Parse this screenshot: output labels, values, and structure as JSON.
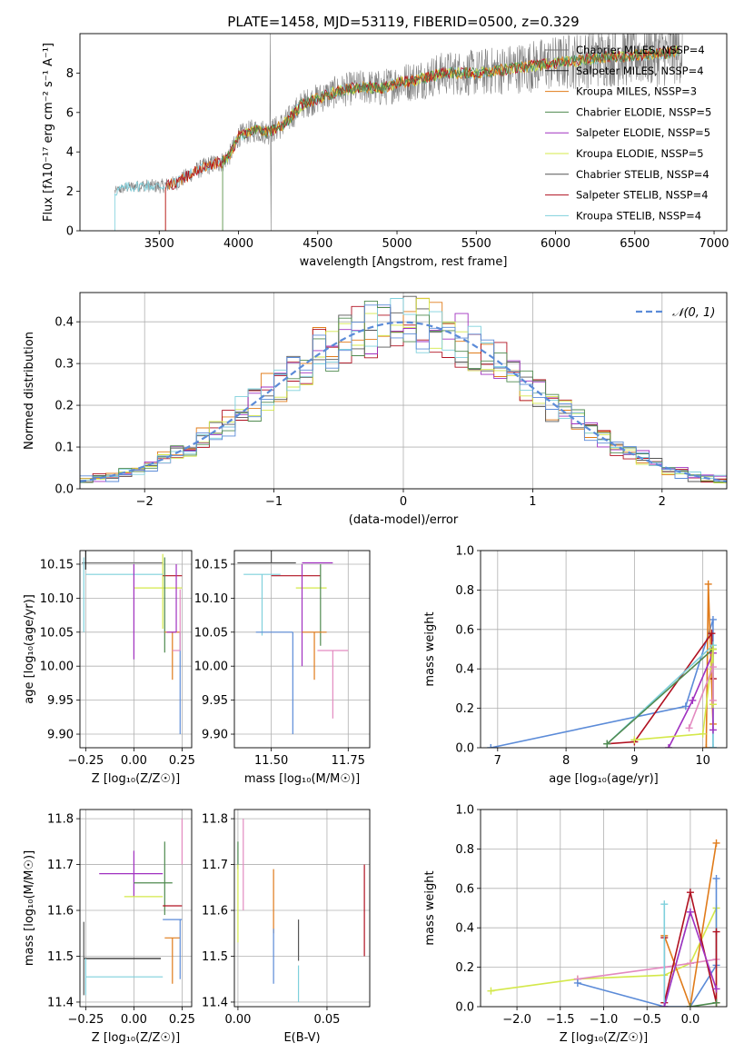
{
  "title": "PLATE=1458, MJD=53119, FIBERID=0500, z=0.329",
  "colors": {
    "c_miles": "#777777",
    "s_miles": "#222222",
    "k_miles": "#e07b1a",
    "c_elodie": "#4f8a4f",
    "s_elodie": "#a030c0",
    "k_elodie": "#d4e84a",
    "c_stelib": "#555555",
    "s_stelib": "#b01020",
    "k_stelib": "#7fd0dc",
    "gauss": "#5b8bd8",
    "extra1": "#5b8bd8",
    "extra2": "#e38ac0"
  },
  "chart_data": [
    {
      "id": "spectrum",
      "type": "line",
      "xlabel": "wavelength [Angstrom, rest frame]",
      "ylabel": "Flux [fλ10⁻¹⁷ erg cm⁻² s⁻¹ A⁻¹]",
      "xlim": [
        3000,
        7080
      ],
      "ylim": [
        0,
        10
      ],
      "xticks": [
        3500,
        4000,
        4500,
        5000,
        5500,
        6000,
        6500,
        7000
      ],
      "yticks": [
        0,
        2,
        4,
        6,
        8
      ],
      "legend": [
        "Chabrier MILES, NSSP=4",
        "Salpeter MILES, NSSP=4",
        "Kroupa MILES, NSSP=3",
        "Chabrier ELODIE, NSSP=5",
        "Salpeter ELODIE, NSSP=5",
        "Kroupa ELODIE, NSSP=5",
        "Chabrier STELIB, NSSP=4",
        "Salpeter STELIB, NSSP=4",
        "Kroupa STELIB, NSSP=4"
      ],
      "legend_placement": "top-right",
      "grid": false,
      "continuum": {
        "x": [
          3220,
          3300,
          3400,
          3500,
          3600,
          3700,
          3800,
          3900,
          3950,
          4000,
          4100,
          4200,
          4300,
          4400,
          4500,
          4600,
          4700,
          4800,
          4900,
          5000,
          5100,
          5200,
          5300,
          5500,
          5700,
          5900,
          6100,
          6300,
          6500,
          6700,
          6800
        ],
        "y": [
          2.0,
          2.2,
          2.3,
          2.25,
          2.4,
          2.9,
          3.3,
          3.5,
          3.9,
          4.8,
          5.1,
          5.0,
          5.5,
          6.4,
          6.7,
          7.0,
          7.2,
          7.3,
          7.2,
          7.5,
          7.6,
          7.8,
          8.0,
          8.0,
          8.2,
          8.4,
          8.6,
          8.8,
          8.9,
          9.0,
          9.2
        ]
      }
    },
    {
      "id": "residuals",
      "type": "step",
      "xlabel": "(data-model)/error",
      "ylabel": "Normed distribution",
      "xlim": [
        -2.5,
        2.5
      ],
      "ylim": [
        0,
        0.47
      ],
      "xticks": [
        -2,
        -1,
        0,
        1,
        2
      ],
      "yticks": [
        0.0,
        0.1,
        0.2,
        0.3,
        0.4
      ],
      "legend": [
        "𝒩(0, 1)"
      ],
      "legend_placement": "top-right",
      "grid": true,
      "bin_width": 0.1
    },
    {
      "id": "age_vs_Z",
      "type": "errorbar",
      "xlabel": "Z [log₁₀(Z/Z☉)]",
      "ylabel": "age  [log₁₀(age/yr)]",
      "xlim": [
        -0.28,
        0.3
      ],
      "ylim": [
        9.88,
        10.17
      ],
      "xticks": [
        -0.25,
        0.0,
        0.25
      ],
      "xtick_labels": [
        "−0.25",
        "0.00",
        "0.25"
      ],
      "yticks": [
        9.9,
        9.95,
        10.0,
        10.05,
        10.1,
        10.15
      ],
      "grid": true,
      "points": [
        {
          "x": -0.02,
          "y": 10.152,
          "xerr": [
            0.25,
            0.17
          ],
          "yerr": [
            0.0,
            0.0
          ],
          "color": "c_miles"
        },
        {
          "x": -0.25,
          "y": 10.152,
          "xerr": [
            0.0,
            0.0
          ],
          "yerr": [
            0.01,
            0.02
          ],
          "color": "s_miles"
        },
        {
          "x": 0.15,
          "y": 10.115,
          "xerr": [
            0.15,
            0.1
          ],
          "yerr": [
            0.06,
            0.05
          ],
          "color": "k_elodie"
        },
        {
          "x": -0.05,
          "y": 10.135,
          "xerr": [
            0.2,
            0.2
          ],
          "yerr": [
            0.0,
            0.0
          ],
          "color": "k_stelib"
        },
        {
          "x": -0.26,
          "y": 10.1,
          "xerr": [
            0.0,
            0.0
          ],
          "yerr": [
            0.05,
            0.06
          ],
          "color": "k_stelib"
        },
        {
          "x": 0.0,
          "y": 10.1,
          "xerr": [
            0.0,
            0.0
          ],
          "yerr": [
            0.09,
            0.05
          ],
          "color": "s_elodie"
        },
        {
          "x": 0.2,
          "y": 10.133,
          "xerr": [
            0.05,
            0.05
          ],
          "yerr": [
            0.0,
            0.0
          ],
          "color": "s_stelib"
        },
        {
          "x": 0.16,
          "y": 10.1,
          "xerr": [
            0.0,
            0.0
          ],
          "yerr": [
            0.08,
            0.06
          ],
          "color": "c_elodie"
        },
        {
          "x": 0.2,
          "y": 10.05,
          "xerr": [
            0.04,
            0.04
          ],
          "yerr": [
            0.07,
            0.0
          ],
          "color": "k_miles"
        },
        {
          "x": 0.22,
          "y": 10.05,
          "xerr": [
            0.05,
            0.0
          ],
          "yerr": [
            0.0,
            0.1
          ],
          "color": "s_elodie"
        },
        {
          "x": 0.24,
          "y": 10.05,
          "xerr": [
            0.0,
            0.0
          ],
          "yerr": [
            0.15,
            0.0
          ],
          "color": "gauss"
        },
        {
          "x": 0.24,
          "y": 10.023,
          "xerr": [
            0.04,
            0.0
          ],
          "yerr": [
            0.0,
            0.09
          ],
          "color": "extra2"
        }
      ]
    },
    {
      "id": "age_vs_mass",
      "type": "errorbar",
      "xlabel": "mass [log₁₀(M/M☉)]",
      "ylabel": "",
      "xlim": [
        11.38,
        11.82
      ],
      "ylim": [
        9.88,
        10.17
      ],
      "xticks": [
        11.5,
        11.75
      ],
      "xtick_labels": [
        "11.50",
        "11.75"
      ],
      "yticks": [
        9.9,
        9.95,
        10.0,
        10.05,
        10.1,
        10.15
      ],
      "grid": true,
      "points": [
        {
          "x": 11.5,
          "y": 10.152,
          "xerr": [
            0.11,
            0.08
          ],
          "yerr": [
            0.0,
            0.02
          ],
          "color": "c_stelib"
        },
        {
          "x": 11.65,
          "y": 10.152,
          "xerr": [
            0.05,
            0.05
          ],
          "yerr": [
            0.0,
            0.0
          ],
          "color": "s_elodie"
        },
        {
          "x": 11.47,
          "y": 10.135,
          "xerr": [
            0.06,
            0.06
          ],
          "yerr": [
            0.09,
            0.0
          ],
          "color": "k_stelib"
        },
        {
          "x": 11.6,
          "y": 10.133,
          "xerr": [
            0.1,
            0.06
          ],
          "yerr": [
            0.0,
            0.0
          ],
          "color": "s_stelib"
        },
        {
          "x": 11.63,
          "y": 10.115,
          "xerr": [
            0.05,
            0.05
          ],
          "yerr": [
            0.0,
            0.0
          ],
          "color": "k_elodie"
        },
        {
          "x": 11.6,
          "y": 10.1,
          "xerr": [
            0.0,
            0.0
          ],
          "yerr": [
            0.1,
            0.05
          ],
          "color": "s_elodie"
        },
        {
          "x": 11.66,
          "y": 10.1,
          "xerr": [
            0.0,
            0.0
          ],
          "yerr": [
            0.07,
            0.05
          ],
          "color": "c_elodie"
        },
        {
          "x": 11.64,
          "y": 10.05,
          "xerr": [
            0.04,
            0.04
          ],
          "yerr": [
            0.07,
            0.0
          ],
          "color": "k_miles"
        },
        {
          "x": 11.57,
          "y": 10.05,
          "xerr": [
            0.12,
            0.0
          ],
          "yerr": [
            0.15,
            0.0
          ],
          "color": "gauss"
        },
        {
          "x": 11.7,
          "y": 10.023,
          "xerr": [
            0.05,
            0.05
          ],
          "yerr": [
            0.1,
            0.0
          ],
          "color": "extra2"
        }
      ]
    },
    {
      "id": "weight_vs_age",
      "type": "line",
      "xlabel": "age  [log₁₀(age/yr)]",
      "ylabel": "mass weight",
      "xlim": [
        6.75,
        10.35
      ],
      "ylim": [
        0,
        1.0
      ],
      "xticks": [
        7,
        8,
        9,
        10
      ],
      "yticks": [
        0.0,
        0.2,
        0.4,
        0.6,
        0.8,
        1.0
      ],
      "grid": true,
      "series": [
        {
          "color": "gauss",
          "x": [
            6.9,
            9.75,
            10.15,
            10.15
          ],
          "y": [
            0.0,
            0.21,
            0.65,
            0.0
          ]
        },
        {
          "color": "k_miles",
          "x": [
            10.05,
            10.08,
            10.15
          ],
          "y": [
            0.0,
            0.83,
            0.12
          ]
        },
        {
          "color": "s_stelib",
          "x": [
            8.6,
            9.0,
            10.13,
            10.15
          ],
          "y": [
            0.02,
            0.03,
            0.58,
            0.35
          ]
        },
        {
          "color": "k_stelib",
          "x": [
            8.6,
            10.15,
            10.15
          ],
          "y": [
            0.02,
            0.52,
            0.0
          ]
        },
        {
          "color": "c_elodie",
          "x": [
            8.6,
            10.15
          ],
          "y": [
            0.02,
            0.5
          ]
        },
        {
          "color": "s_elodie",
          "x": [
            9.5,
            9.85,
            10.15,
            10.15
          ],
          "y": [
            0.0,
            0.24,
            0.48,
            0.09
          ]
        },
        {
          "color": "k_elodie",
          "x": [
            9.0,
            10.0,
            10.15,
            10.15
          ],
          "y": [
            0.04,
            0.07,
            0.5,
            0.22
          ]
        },
        {
          "color": "extra2",
          "x": [
            9.8,
            10.15,
            10.15
          ],
          "y": [
            0.1,
            0.41,
            0.24
          ]
        }
      ]
    },
    {
      "id": "mass_vs_Z",
      "type": "errorbar",
      "xlabel": "Z [log₁₀(Z/Z☉)]",
      "ylabel": "mass [log₁₀(M/M☉)]",
      "xlim": [
        -0.28,
        0.3
      ],
      "ylim": [
        11.39,
        11.82
      ],
      "xticks": [
        -0.25,
        0.0,
        0.25
      ],
      "xtick_labels": [
        "−0.25",
        "0.00",
        "0.25"
      ],
      "yticks": [
        11.4,
        11.5,
        11.6,
        11.7,
        11.8
      ],
      "grid": true,
      "points": [
        {
          "x": 0.0,
          "y": 11.68,
          "xerr": [
            0.18,
            0.15
          ],
          "yerr": [
            0.05,
            0.05
          ],
          "color": "s_elodie"
        },
        {
          "x": 0.1,
          "y": 11.66,
          "xerr": [
            0.1,
            0.1
          ],
          "yerr": [
            0.0,
            0.0
          ],
          "color": "c_elodie"
        },
        {
          "x": 0.16,
          "y": 11.66,
          "xerr": [
            0.0,
            0.0
          ],
          "yerr": [
            0.07,
            0.09
          ],
          "color": "c_elodie"
        },
        {
          "x": 0.05,
          "y": 11.63,
          "xerr": [
            0.1,
            0.1
          ],
          "yerr": [
            0.0,
            0.0
          ],
          "color": "k_elodie"
        },
        {
          "x": 0.2,
          "y": 11.61,
          "xerr": [
            0.05,
            0.05
          ],
          "yerr": [
            0.0,
            0.0
          ],
          "color": "s_stelib"
        },
        {
          "x": 0.2,
          "y": 11.58,
          "xerr": [
            0.05,
            0.05
          ],
          "yerr": [
            0.0,
            0.0
          ],
          "color": "gauss"
        },
        {
          "x": 0.2,
          "y": 11.54,
          "xerr": [
            0.04,
            0.04
          ],
          "yerr": [
            0.1,
            0.0
          ],
          "color": "k_miles"
        },
        {
          "x": 0.24,
          "y": 11.58,
          "xerr": [
            0.0,
            0.0
          ],
          "yerr": [
            0.13,
            0.0
          ],
          "color": "gauss"
        },
        {
          "x": 0.25,
          "y": 11.7,
          "xerr": [
            0.0,
            0.0
          ],
          "yerr": [
            0.0,
            0.1
          ],
          "color": "extra2"
        },
        {
          "x": -0.06,
          "y": 11.495,
          "xerr": [
            0.2,
            0.2
          ],
          "yerr": [
            0.0,
            0.0
          ],
          "color": "s_miles"
        },
        {
          "x": -0.26,
          "y": 11.495,
          "xerr": [
            0.0,
            0.0
          ],
          "yerr": [
            0.08,
            0.08
          ],
          "color": "c_stelib"
        },
        {
          "x": -0.05,
          "y": 11.455,
          "xerr": [
            0.2,
            0.2
          ],
          "yerr": [
            0.0,
            0.0
          ],
          "color": "k_stelib"
        },
        {
          "x": -0.25,
          "y": 11.455,
          "xerr": [
            0.0,
            0.0
          ],
          "yerr": [
            0.04,
            0.04
          ],
          "color": "k_stelib"
        }
      ]
    },
    {
      "id": "mass_vs_ebv",
      "type": "errorbar",
      "xlabel": "E(B-V)",
      "ylabel": "",
      "xlim": [
        -0.002,
        0.074
      ],
      "ylim": [
        11.39,
        11.82
      ],
      "xticks": [
        0.0,
        0.05
      ],
      "xtick_labels": [
        "0.00",
        "0.05"
      ],
      "yticks": [
        11.4,
        11.5,
        11.6,
        11.7,
        11.8
      ],
      "grid": true,
      "points": [
        {
          "x": 0.0,
          "y": 11.72,
          "xerr": [
            0,
            0
          ],
          "yerr": [
            0.03,
            0.03
          ],
          "color": "c_elodie"
        },
        {
          "x": 0.0,
          "y": 11.63,
          "xerr": [
            0,
            0
          ],
          "yerr": [
            0.1,
            0.07
          ],
          "color": "k_elodie"
        },
        {
          "x": 0.003,
          "y": 11.7,
          "xerr": [
            0,
            0
          ],
          "yerr": [
            0.1,
            0.1
          ],
          "color": "extra2"
        },
        {
          "x": 0.02,
          "y": 11.62,
          "xerr": [
            0,
            0
          ],
          "yerr": [
            0.07,
            0.07
          ],
          "color": "k_miles"
        },
        {
          "x": 0.02,
          "y": 11.5,
          "xerr": [
            0,
            0
          ],
          "yerr": [
            0.06,
            0.06
          ],
          "color": "gauss"
        },
        {
          "x": 0.034,
          "y": 11.535,
          "xerr": [
            0,
            0
          ],
          "yerr": [
            0.045,
            0.045
          ],
          "color": "c_stelib"
        },
        {
          "x": 0.034,
          "y": 11.44,
          "xerr": [
            0,
            0
          ],
          "yerr": [
            0.04,
            0.04
          ],
          "color": "k_stelib"
        },
        {
          "x": 0.071,
          "y": 11.6,
          "xerr": [
            0,
            0
          ],
          "yerr": [
            0.1,
            0.1
          ],
          "color": "s_stelib"
        }
      ]
    },
    {
      "id": "weight_vs_Z",
      "type": "line",
      "xlabel": "Z [log₁₀(Z/Z☉)]",
      "ylabel": "mass weight",
      "xlim": [
        -2.42,
        0.42
      ],
      "ylim": [
        0,
        1.0
      ],
      "xticks": [
        -2.0,
        -1.5,
        -1.0,
        -0.5,
        0.0
      ],
      "xtick_labels": [
        "−2.0",
        "−1.5",
        "−1.0",
        "−0.5",
        "0.0"
      ],
      "yticks": [
        0.0,
        0.2,
        0.4,
        0.6,
        0.8,
        1.0
      ],
      "grid": true,
      "series": [
        {
          "color": "k_elodie",
          "x": [
            -2.3,
            -1.3,
            -0.3,
            0.0,
            0.3,
            0.3
          ],
          "y": [
            0.08,
            0.14,
            0.16,
            0.22,
            0.5,
            0.02
          ]
        },
        {
          "color": "extra2",
          "x": [
            -1.3,
            -0.3,
            0.0,
            0.3
          ],
          "y": [
            0.14,
            0.2,
            0.22,
            0.24
          ]
        },
        {
          "color": "gauss",
          "x": [
            -1.3,
            -0.3,
            0.0,
            0.3,
            0.3
          ],
          "y": [
            0.12,
            0.0,
            0.0,
            0.21,
            0.65
          ]
        },
        {
          "color": "k_miles",
          "x": [
            -0.3,
            0.0,
            0.3
          ],
          "y": [
            0.36,
            0.0,
            0.83
          ]
        },
        {
          "color": "s_stelib",
          "x": [
            -0.3,
            -0.3,
            0.0,
            0.3,
            0.3
          ],
          "y": [
            0.35,
            0.02,
            0.58,
            0.02,
            0.38
          ]
        },
        {
          "color": "k_stelib",
          "x": [
            -0.3,
            -0.3,
            0.0
          ],
          "y": [
            0.52,
            0.0,
            0.48
          ]
        },
        {
          "color": "s_elodie",
          "x": [
            -0.3,
            0.0,
            0.3
          ],
          "y": [
            0.0,
            0.48,
            0.09
          ]
        },
        {
          "color": "c_elodie",
          "x": [
            0.0,
            0.3
          ],
          "y": [
            0.0,
            0.02
          ]
        }
      ]
    }
  ]
}
